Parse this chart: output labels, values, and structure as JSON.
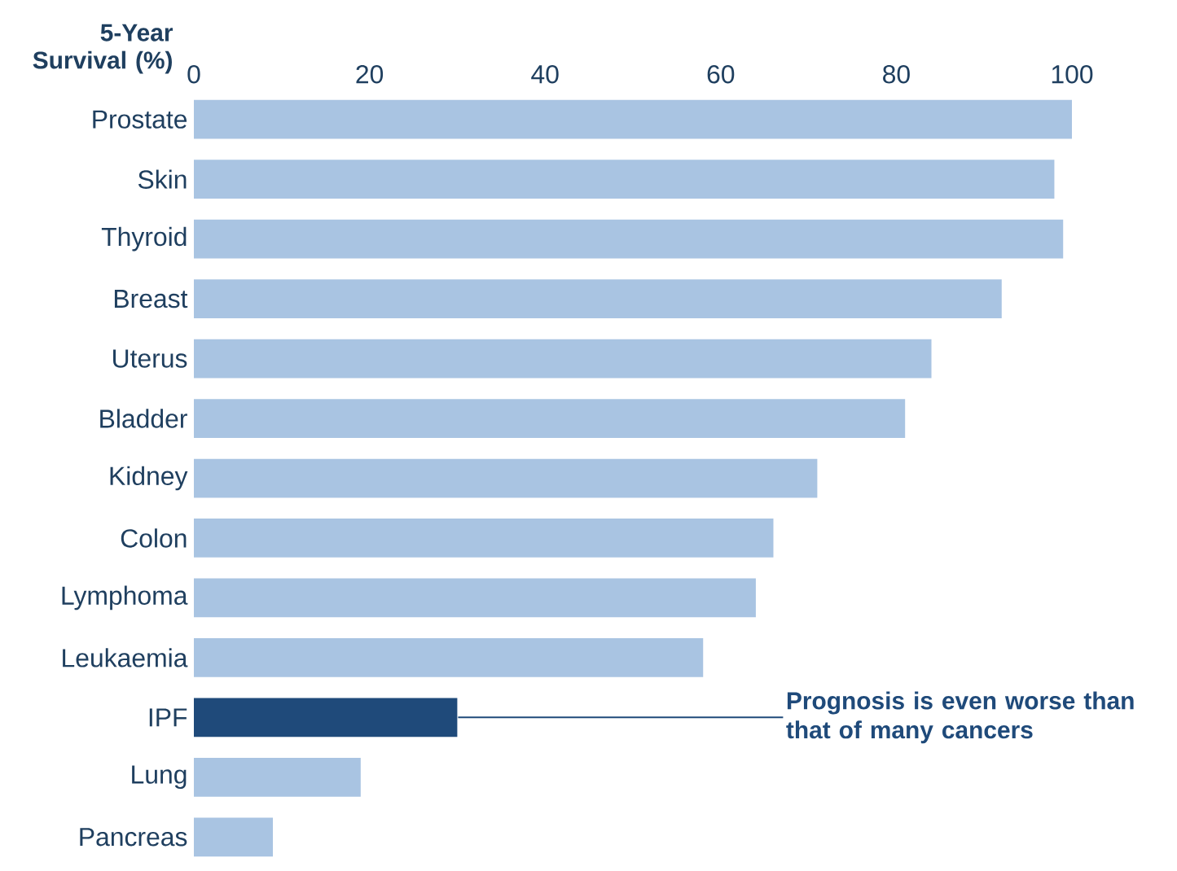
{
  "chart_data": {
    "type": "bar",
    "orientation": "horizontal",
    "xlabel": "5-Year Survival (%)",
    "categories": [
      "Prostate",
      "Skin",
      "Thyroid",
      "Breast",
      "Uterus",
      "Bladder",
      "Kidney",
      "Colon",
      "Lymphoma",
      "Leukaemia",
      "IPF",
      "Lung",
      "Pancreas"
    ],
    "values": [
      100,
      98,
      99,
      92,
      84,
      81,
      71,
      66,
      64,
      58,
      30,
      19,
      9
    ],
    "colors": [
      "#a9c4e2",
      "#a9c4e2",
      "#a9c4e2",
      "#a9c4e2",
      "#a9c4e2",
      "#a9c4e2",
      "#a9c4e2",
      "#a9c4e2",
      "#a9c4e2",
      "#a9c4e2",
      "#1f4a7a",
      "#a9c4e2",
      "#a9c4e2"
    ],
    "xlim": [
      0,
      100
    ],
    "xticks": [
      0,
      20,
      40,
      60,
      80,
      100
    ],
    "annotations": [
      {
        "text": "Prognosis is even worse than that of many cancers",
        "x": 30,
        "y": "IPF"
      }
    ]
  }
}
